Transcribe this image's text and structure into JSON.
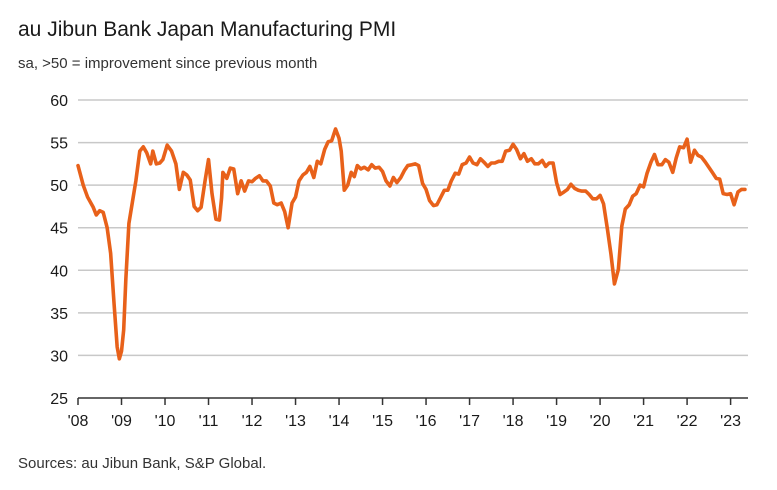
{
  "header": {
    "title": "au Jibun Bank Japan Manufacturing PMI",
    "subtitle": "sa, >50 = improvement since previous month"
  },
  "footer": {
    "source": "Sources: au Jibun Bank, S&P Global."
  },
  "colors": {
    "line": "#e8611a",
    "grid": "#c8c8c8",
    "axis": "#333333"
  },
  "chart_data": {
    "type": "line",
    "title": "au Jibun Bank Japan Manufacturing PMI",
    "subtitle": "sa, >50 = improvement since previous month",
    "xlabel": "",
    "ylabel": "",
    "ylim": [
      25,
      60
    ],
    "xlim": [
      2008.0,
      2023.4
    ],
    "yticks": [
      25,
      30,
      35,
      40,
      45,
      50,
      55,
      60
    ],
    "xticks": [
      {
        "x": 2008,
        "label": "'08"
      },
      {
        "x": 2009,
        "label": "'09"
      },
      {
        "x": 2010,
        "label": "'10"
      },
      {
        "x": 2011,
        "label": "'11"
      },
      {
        "x": 2012,
        "label": "'12"
      },
      {
        "x": 2013,
        "label": "'13"
      },
      {
        "x": 2014,
        "label": "'14"
      },
      {
        "x": 2015,
        "label": "'15"
      },
      {
        "x": 2016,
        "label": "'16"
      },
      {
        "x": 2017,
        "label": "'17"
      },
      {
        "x": 2018,
        "label": "'18"
      },
      {
        "x": 2019,
        "label": "'19"
      },
      {
        "x": 2020,
        "label": "'20"
      },
      {
        "x": 2021,
        "label": "'21"
      },
      {
        "x": 2022,
        "label": "'22"
      },
      {
        "x": 2023,
        "label": "'23"
      }
    ],
    "grid": true,
    "series": [
      {
        "name": "au Jibun Bank Japan Manufacturing PMI",
        "x": [
          2008.0,
          2008.12,
          2008.22,
          2008.35,
          2008.42,
          2008.5,
          2008.58,
          2008.67,
          2008.75,
          2008.83,
          2008.9,
          2008.95,
          2009.0,
          2009.05,
          2009.1,
          2009.17,
          2009.25,
          2009.33,
          2009.42,
          2009.5,
          2009.58,
          2009.67,
          2009.72,
          2009.8,
          2009.88,
          2009.95,
          2010.05,
          2010.15,
          2010.25,
          2010.33,
          2010.42,
          2010.5,
          2010.58,
          2010.67,
          2010.75,
          2010.83,
          2010.92,
          2011.0,
          2011.08,
          2011.17,
          2011.25,
          2011.3,
          2011.33,
          2011.42,
          2011.5,
          2011.58,
          2011.67,
          2011.75,
          2011.83,
          2011.92,
          2012.0,
          2012.08,
          2012.17,
          2012.25,
          2012.33,
          2012.42,
          2012.5,
          2012.58,
          2012.67,
          2012.75,
          2012.83,
          2012.92,
          2013.0,
          2013.08,
          2013.17,
          2013.25,
          2013.33,
          2013.42,
          2013.5,
          2013.58,
          2013.67,
          2013.75,
          2013.83,
          2013.92,
          2014.0,
          2014.05,
          2014.12,
          2014.2,
          2014.28,
          2014.35,
          2014.42,
          2014.5,
          2014.58,
          2014.67,
          2014.75,
          2014.83,
          2014.92,
          2015.0,
          2015.08,
          2015.17,
          2015.25,
          2015.33,
          2015.42,
          2015.5,
          2015.58,
          2015.67,
          2015.75,
          2015.83,
          2015.92,
          2016.0,
          2016.08,
          2016.17,
          2016.25,
          2016.33,
          2016.42,
          2016.5,
          2016.58,
          2016.67,
          2016.75,
          2016.83,
          2016.92,
          2017.0,
          2017.08,
          2017.17,
          2017.25,
          2017.33,
          2017.42,
          2017.5,
          2017.58,
          2017.67,
          2017.75,
          2017.83,
          2017.92,
          2018.0,
          2018.08,
          2018.17,
          2018.25,
          2018.33,
          2018.42,
          2018.5,
          2018.58,
          2018.67,
          2018.75,
          2018.83,
          2018.92,
          2019.0,
          2019.08,
          2019.17,
          2019.25,
          2019.33,
          2019.42,
          2019.5,
          2019.58,
          2019.67,
          2019.75,
          2019.83,
          2019.92,
          2020.0,
          2020.08,
          2020.17,
          2020.25,
          2020.33,
          2020.42,
          2020.5,
          2020.58,
          2020.67,
          2020.75,
          2020.83,
          2020.92,
          2021.0,
          2021.08,
          2021.17,
          2021.25,
          2021.33,
          2021.42,
          2021.5,
          2021.58,
          2021.67,
          2021.75,
          2021.83,
          2021.92,
          2022.0,
          2022.08,
          2022.17,
          2022.25,
          2022.33,
          2022.42,
          2022.5,
          2022.58,
          2022.67,
          2022.75,
          2022.83,
          2022.92,
          2023.0,
          2023.08,
          2023.17,
          2023.25,
          2023.33
        ],
        "values": [
          52.3,
          50.0,
          48.6,
          47.4,
          46.5,
          47.0,
          46.8,
          45.0,
          42.0,
          36.0,
          31.0,
          29.6,
          30.5,
          33.0,
          39.0,
          45.5,
          48.0,
          50.5,
          54.0,
          54.5,
          53.8,
          52.5,
          54.0,
          52.5,
          52.6,
          53.0,
          54.7,
          54.0,
          52.5,
          49.5,
          51.5,
          51.2,
          50.6,
          47.5,
          47.0,
          47.4,
          50.5,
          53.0,
          49.0,
          46.0,
          45.9,
          48.5,
          51.5,
          50.8,
          52.0,
          51.9,
          49.0,
          50.5,
          49.3,
          50.5,
          50.4,
          50.8,
          51.1,
          50.5,
          50.5,
          49.9,
          47.9,
          47.7,
          47.9,
          46.9,
          45.0,
          47.9,
          48.6,
          50.5,
          51.2,
          51.5,
          52.2,
          50.9,
          52.8,
          52.5,
          54.2,
          55.1,
          55.2,
          56.6,
          55.5,
          54.0,
          49.4,
          50.0,
          51.5,
          51.0,
          52.3,
          51.9,
          52.1,
          51.8,
          52.4,
          52.0,
          52.1,
          51.6,
          50.5,
          49.9,
          50.9,
          50.3,
          50.9,
          51.7,
          52.3,
          52.4,
          52.5,
          52.3,
          50.2,
          49.5,
          48.2,
          47.6,
          47.7,
          48.5,
          49.4,
          49.4,
          50.5,
          51.4,
          51.3,
          52.4,
          52.6,
          53.3,
          52.6,
          52.4,
          53.1,
          52.7,
          52.2,
          52.6,
          52.6,
          52.8,
          52.8,
          54.0,
          54.1,
          54.8,
          54.2,
          53.1,
          53.7,
          52.8,
          53.1,
          52.5,
          52.5,
          52.9,
          52.2,
          52.6,
          52.6,
          50.3,
          48.9,
          49.2,
          49.5,
          50.1,
          49.6,
          49.4,
          49.3,
          49.3,
          48.9,
          48.4,
          48.4,
          48.8,
          47.8,
          44.8,
          41.9,
          38.4,
          40.1,
          45.2,
          47.2,
          47.7,
          48.7,
          49.0,
          50.0,
          49.8,
          51.4,
          52.7,
          53.6,
          52.4,
          52.4,
          53.0,
          52.7,
          51.5,
          53.2,
          54.5,
          54.4,
          55.4,
          52.7,
          54.1,
          53.5,
          53.3,
          52.7,
          52.1,
          51.5,
          50.8,
          50.7,
          49.0,
          48.9,
          49.0,
          47.7,
          49.2,
          49.5,
          49.5
        ]
      }
    ]
  }
}
